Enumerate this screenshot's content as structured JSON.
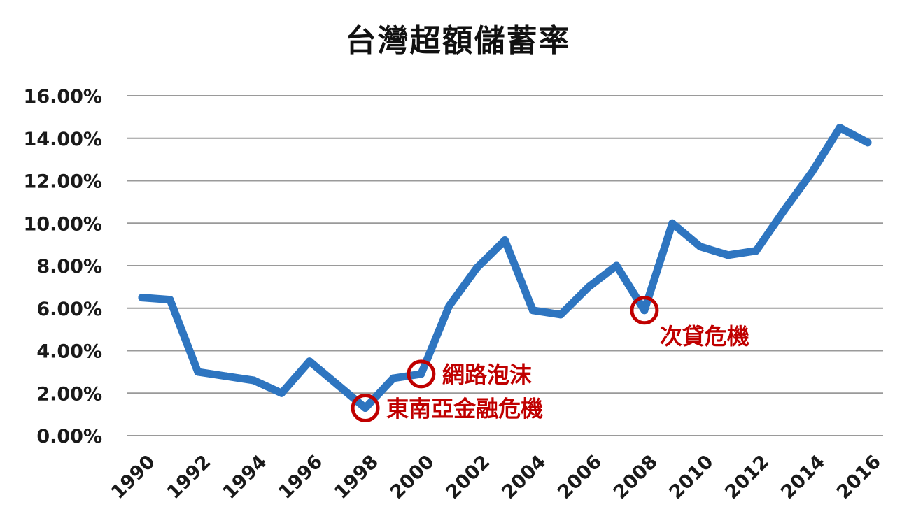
{
  "chart_data": {
    "type": "line",
    "title": "台灣超額儲蓄率",
    "xlabel": "",
    "ylabel": "",
    "ylim": [
      0,
      16
    ],
    "yticks": [
      "0.00%",
      "2.00%",
      "4.00%",
      "6.00%",
      "8.00%",
      "10.00%",
      "12.00%",
      "14.00%",
      "16.00%"
    ],
    "ytick_values": [
      0,
      2,
      4,
      6,
      8,
      10,
      12,
      14,
      16
    ],
    "xticks": [
      "1990",
      "1992",
      "1994",
      "1996",
      "1998",
      "2000",
      "2002",
      "2004",
      "2006",
      "2008",
      "2010",
      "2012",
      "2014",
      "2016"
    ],
    "grid": true,
    "series": [
      {
        "x": [
          1990,
          1991,
          1992,
          1993,
          1994,
          1995,
          1996,
          1997,
          1998,
          1999,
          2000,
          2001,
          2002,
          2003,
          2004,
          2005,
          2006,
          2007,
          2008,
          2009,
          2010,
          2011,
          2012,
          2013,
          2014,
          2015,
          2016
        ],
        "values": [
          6.5,
          6.4,
          3.0,
          2.8,
          2.6,
          2.0,
          3.5,
          2.4,
          1.3,
          2.7,
          2.9,
          6.1,
          7.9,
          9.2,
          5.9,
          5.7,
          7.0,
          8.0,
          5.9,
          10.0,
          8.9,
          8.5,
          8.7,
          10.6,
          12.4,
          14.5,
          13.8
        ],
        "color": "#2e75c0"
      }
    ],
    "annotations": [
      {
        "label": "東南亞金融危機",
        "x": 1998,
        "y": 1.3,
        "color": "#c00000"
      },
      {
        "label": "網路泡沫",
        "x": 2000,
        "y": 2.9,
        "color": "#c00000"
      },
      {
        "label": "次貸危機",
        "x": 2008,
        "y": 5.9,
        "color": "#c00000"
      }
    ]
  }
}
